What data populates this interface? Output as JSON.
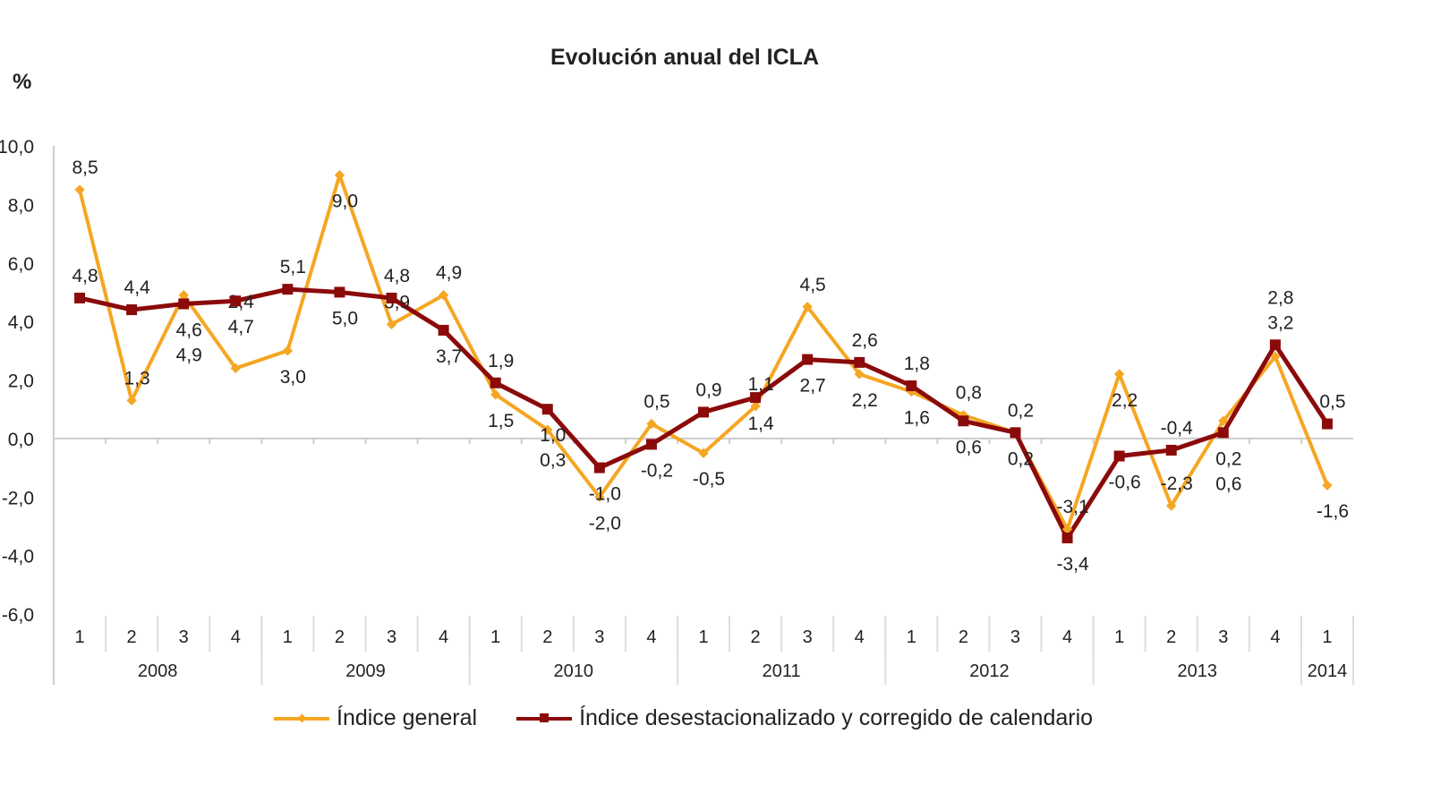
{
  "chart_data": {
    "type": "line",
    "title": "Evolución anual del ICLA",
    "ylabel": "%",
    "ylim": [
      -6,
      10
    ],
    "yticks": [
      "10,0",
      "8,0",
      "6,0",
      "4,0",
      "2,0",
      "0,0",
      "-2,0",
      "-4,0",
      "-6,0"
    ],
    "ytick_values": [
      10,
      8,
      6,
      4,
      2,
      0,
      -2,
      -4,
      -6
    ],
    "quarters": [
      "1",
      "2",
      "3",
      "4",
      "1",
      "2",
      "3",
      "4",
      "1",
      "2",
      "3",
      "4",
      "1",
      "2",
      "3",
      "4",
      "1",
      "2",
      "3",
      "4",
      "1",
      "2",
      "3",
      "4",
      "1"
    ],
    "years": [
      {
        "label": "2008",
        "count": 4
      },
      {
        "label": "2009",
        "count": 4
      },
      {
        "label": "2010",
        "count": 4
      },
      {
        "label": "2011",
        "count": 4
      },
      {
        "label": "2012",
        "count": 4
      },
      {
        "label": "2013",
        "count": 4
      },
      {
        "label": "2014",
        "count": 1
      }
    ],
    "grid": false,
    "legend_placement": "bottom",
    "series": [
      {
        "name": "Índice general",
        "color": "#F5A623",
        "marker": "diamond",
        "values": [
          8.5,
          1.3,
          4.9,
          2.4,
          3.0,
          9.0,
          3.9,
          4.9,
          1.5,
          0.3,
          -2.0,
          0.5,
          -0.5,
          1.1,
          4.5,
          2.2,
          1.6,
          0.8,
          0.2,
          -3.1,
          2.2,
          -2.3,
          0.6,
          2.8,
          -1.6
        ]
      },
      {
        "name": "Índice desestacionalizado y corregido de calendario",
        "color": "#8B0A0A",
        "marker": "square",
        "values": [
          4.8,
          4.4,
          4.6,
          4.7,
          5.1,
          5.0,
          4.8,
          3.7,
          1.9,
          1.0,
          -1.0,
          -0.2,
          0.9,
          1.4,
          2.7,
          2.6,
          1.8,
          0.6,
          0.2,
          -3.4,
          -0.6,
          -0.4,
          0.2,
          3.2,
          0.5
        ]
      }
    ]
  }
}
